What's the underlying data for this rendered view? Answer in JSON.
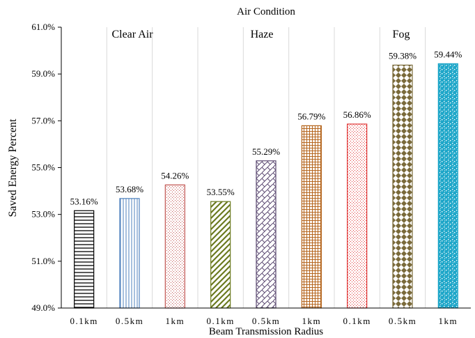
{
  "chart_data": {
    "type": "bar",
    "title": "Air Condition",
    "xlabel": "Beam Transmission Radius",
    "ylabel": "Saved Energy Percent",
    "ylim": [
      49.0,
      61.0
    ],
    "yticks": [
      "49.0%",
      "51.0%",
      "53.0%",
      "55.0%",
      "57.0%",
      "59.0%",
      "61.0%"
    ],
    "grid": "vertical lines between bars",
    "groups": [
      {
        "name": "Clear Air",
        "categories": [
          "0.1km",
          "0.5km",
          "1km"
        ]
      },
      {
        "name": "Haze",
        "categories": [
          "0.1km",
          "0.5km",
          "1km"
        ]
      },
      {
        "name": "Fog",
        "categories": [
          "0.1km",
          "0.5km",
          "1km"
        ]
      }
    ],
    "categories": [
      "0.1km",
      "0.5km",
      "1km",
      "0.1km",
      "0.5km",
      "1km",
      "0.1km",
      "0.5km",
      "1km"
    ],
    "values": [
      53.16,
      53.68,
      54.26,
      53.55,
      55.29,
      56.79,
      56.86,
      59.38,
      59.44
    ],
    "labels": [
      "53.16%",
      "53.68%",
      "54.26%",
      "53.55%",
      "55.29%",
      "56.79%",
      "56.86%",
      "59.38%",
      "59.44%"
    ],
    "bar_colors": [
      "#000000",
      "#4f81bd",
      "#c0504d",
      "#6b7a1f",
      "#5c4a72",
      "#b5651d",
      "#e03030",
      "#7a6a3a",
      "#1fa7c9"
    ],
    "bar_patterns": [
      "horizontal-lines",
      "vertical-lines",
      "dots",
      "diagonal-lines",
      "diagonal-brick",
      "grid",
      "dotted-grid",
      "checker-diamonds",
      "confetti"
    ]
  }
}
